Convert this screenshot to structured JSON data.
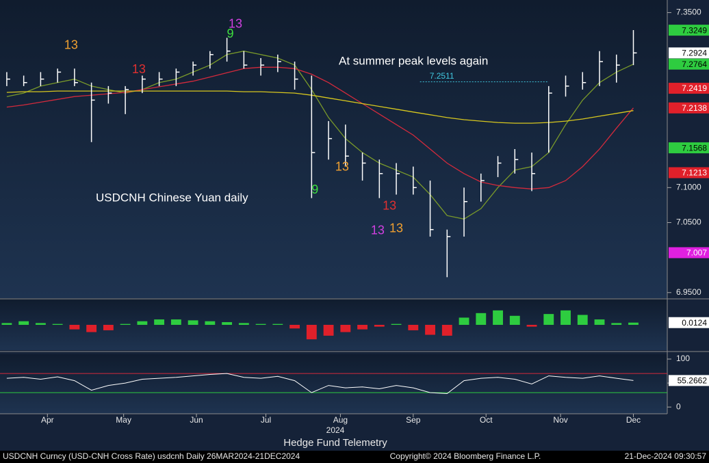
{
  "chart_data": [
    {
      "type": "ohlc",
      "note": "At summer peak levels again",
      "label": "USDCNH Chinese Yuan daily",
      "x": [
        0,
        1,
        2,
        3,
        4,
        5,
        6,
        7,
        8,
        9,
        10,
        11,
        12,
        13,
        14,
        15,
        16,
        17,
        18,
        19,
        20,
        21,
        22,
        23,
        24,
        25,
        26,
        27,
        28,
        29,
        30,
        31,
        32,
        33,
        34,
        35,
        36,
        37
      ],
      "xlim": [
        -0.4,
        39
      ],
      "high": [
        7.265,
        7.26,
        7.265,
        7.27,
        7.27,
        7.25,
        7.245,
        7.245,
        7.26,
        7.265,
        7.27,
        7.28,
        7.295,
        7.314,
        7.295,
        7.285,
        7.29,
        7.28,
        7.26,
        7.195,
        7.19,
        7.15,
        7.14,
        7.135,
        7.13,
        7.11,
        7.04,
        7.1,
        7.12,
        7.145,
        7.155,
        7.15,
        7.245,
        7.26,
        7.265,
        7.295,
        7.29,
        7.325
      ],
      "low": [
        7.245,
        7.245,
        7.245,
        7.25,
        7.245,
        7.165,
        7.22,
        7.205,
        7.235,
        7.245,
        7.245,
        7.26,
        7.27,
        7.28,
        7.27,
        7.26,
        7.265,
        7.24,
        7.085,
        7.14,
        7.13,
        7.11,
        7.085,
        7.09,
        7.09,
        7.03,
        6.972,
        7.03,
        7.08,
        7.115,
        7.12,
        7.095,
        7.15,
        7.23,
        7.24,
        7.245,
        7.25,
        7.275
      ],
      "close": [
        7.255,
        7.25,
        7.255,
        7.265,
        7.25,
        7.225,
        7.235,
        7.24,
        7.255,
        7.255,
        7.265,
        7.275,
        7.29,
        7.295,
        7.275,
        7.275,
        7.28,
        7.255,
        7.15,
        7.17,
        7.145,
        7.135,
        7.12,
        7.12,
        7.1,
        7.04,
        7.03,
        7.08,
        7.11,
        7.135,
        7.14,
        7.12,
        7.235,
        7.245,
        7.25,
        7.28,
        7.275,
        7.2924
      ],
      "color": "#ffffff",
      "close_tag_color": "#ffffff",
      "series": [
        {
          "color": "#7a9a2a",
          "last_tag": true,
          "values": [
            7.23,
            7.235,
            7.245,
            7.25,
            7.255,
            7.245,
            7.24,
            7.235,
            7.24,
            7.25,
            7.255,
            7.265,
            7.275,
            7.29,
            7.295,
            7.29,
            7.285,
            7.275,
            7.24,
            7.2,
            7.17,
            7.15,
            7.135,
            7.125,
            7.115,
            7.09,
            7.06,
            7.055,
            7.07,
            7.1,
            7.125,
            7.13,
            7.15,
            7.19,
            7.225,
            7.25,
            7.265,
            7.2764
          ]
        },
        {
          "color": "#d42a3c",
          "last_tag": true,
          "values": [
            7.215,
            7.218,
            7.222,
            7.226,
            7.23,
            7.232,
            7.234,
            7.236,
            7.24,
            7.244,
            7.248,
            7.252,
            7.258,
            7.264,
            7.27,
            7.272,
            7.272,
            7.27,
            7.262,
            7.25,
            7.235,
            7.22,
            7.205,
            7.19,
            7.175,
            7.155,
            7.135,
            7.12,
            7.108,
            7.103,
            7.1,
            7.098,
            7.1,
            7.11,
            7.13,
            7.155,
            7.185,
            7.2138
          ]
        },
        {
          "color": "#d8c81e",
          "last_tag": false,
          "values": [
            7.236,
            7.237,
            7.237,
            7.238,
            7.238,
            7.238,
            7.238,
            7.238,
            7.238,
            7.238,
            7.238,
            7.238,
            7.238,
            7.238,
            7.237,
            7.237,
            7.236,
            7.235,
            7.232,
            7.228,
            7.224,
            7.22,
            7.216,
            7.212,
            7.208,
            7.204,
            7.2,
            7.197,
            7.195,
            7.193,
            7.192,
            7.192,
            7.193,
            7.195,
            7.198,
            7.202,
            7.206,
            7.21
          ]
        }
      ],
      "ylim": [
        6.942,
        7.368
      ],
      "yticks": [
        {
          "value": 7.35,
          "label": "7.3500"
        },
        {
          "value": 7.1,
          "label": "7.1000"
        },
        {
          "value": 7.05,
          "label": "7.0500"
        },
        {
          "value": 6.95,
          "label": "6.9500"
        }
      ],
      "levels": [
        {
          "value": 7.2511,
          "color": "#40c8e0",
          "from": 24.4,
          "to": 32
        }
      ],
      "price_tags": [
        {
          "value": 7.3249,
          "color": "#2ecc40"
        },
        {
          "value": 7.2419,
          "color": "#e0202a"
        },
        {
          "value": 7.1568,
          "color": "#2ecc40"
        },
        {
          "value": 7.1213,
          "color": "#e0202a"
        },
        {
          "value": 7.007,
          "color": "#e020e0"
        }
      ],
      "annotations": [
        {
          "text": "13",
          "x": 3.8,
          "y": 7.303,
          "color": "#f0a030"
        },
        {
          "text": "13",
          "x": 7.8,
          "y": 7.268,
          "color": "#e03030"
        },
        {
          "text": "9",
          "x": 13.2,
          "y": 7.319,
          "color": "#3ee03e"
        },
        {
          "text": "13",
          "x": 13.5,
          "y": 7.333,
          "color": "#d040e0"
        },
        {
          "text": "9",
          "x": 18.2,
          "y": 7.096,
          "color": "#3ee03e"
        },
        {
          "text": "13",
          "x": 19.8,
          "y": 7.129,
          "color": "#f0a030"
        },
        {
          "text": "13",
          "x": 22.6,
          "y": 7.073,
          "color": "#e03030"
        },
        {
          "text": "13",
          "x": 21.9,
          "y": 7.038,
          "color": "#d040e0"
        },
        {
          "text": "13",
          "x": 23,
          "y": 7.041,
          "color": "#f0a030"
        }
      ]
    },
    {
      "type": "bar",
      "values": [
        0.01,
        0.02,
        0.01,
        0.005,
        -0.025,
        -0.04,
        -0.03,
        0.005,
        0.02,
        0.03,
        0.03,
        0.025,
        0.02,
        0.015,
        0.01,
        0.005,
        0.005,
        -0.02,
        -0.08,
        -0.06,
        -0.04,
        -0.025,
        -0.01,
        0.005,
        -0.03,
        -0.055,
        -0.06,
        0.04,
        0.065,
        0.08,
        0.05,
        -0.01,
        0.06,
        0.08,
        0.055,
        0.03,
        0.01,
        0.0124
      ],
      "up_color": "#2ecc40",
      "down_color": "#e0202a",
      "last_tag_color": "#ffffff",
      "ylim": [
        -0.14,
        0.14
      ]
    },
    {
      "type": "line",
      "values": [
        60,
        62,
        58,
        63,
        55,
        35,
        45,
        50,
        58,
        60,
        62,
        65,
        68,
        70,
        62,
        60,
        64,
        55,
        30,
        45,
        40,
        42,
        38,
        45,
        40,
        30,
        28,
        55,
        60,
        62,
        58,
        48,
        65,
        62,
        60,
        65,
        60,
        55.2662
      ],
      "color": "#ffffff",
      "last_tag_color": "#ffffff",
      "ylim": [
        -14,
        110
      ],
      "yticks": [
        0,
        50,
        100
      ],
      "levels": [
        {
          "value": 70,
          "color": "#d42a3c"
        },
        {
          "value": 30,
          "color": "#2ecc40"
        }
      ],
      "xlabel": "2024",
      "xticks": [
        {
          "value": 2.4,
          "label": "Apr"
        },
        {
          "value": 6.9,
          "label": "May"
        },
        {
          "value": 11.2,
          "label": "Jun"
        },
        {
          "value": 15.3,
          "label": "Jul"
        },
        {
          "value": 19.7,
          "label": "Aug"
        },
        {
          "value": 24.0,
          "label": "Sep"
        },
        {
          "value": 28.3,
          "label": "Oct"
        },
        {
          "value": 32.7,
          "label": "Nov"
        },
        {
          "value": 37.0,
          "label": "Dec"
        }
      ]
    }
  ],
  "brand": "Hedge Fund Telemetry",
  "footer": {
    "left": "USDCNH Curncy (USD-CNH Cross Rate) usdcnh  Daily 26MAR2024-21DEC2024",
    "center": "Copyright© 2024 Bloomberg Finance L.P.",
    "right": "21-Dec-2024 09:30:57"
  }
}
